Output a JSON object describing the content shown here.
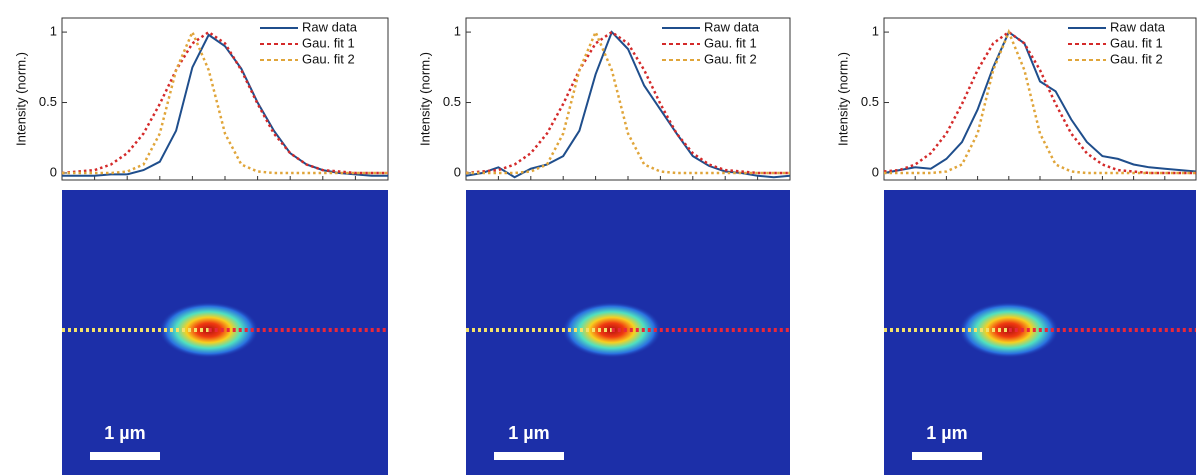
{
  "chart_data": [
    {
      "type": "line",
      "ylabel": "Intensity (norm.)",
      "x": [
        0,
        2,
        4,
        6,
        8,
        10,
        12,
        14,
        16,
        18,
        20,
        22,
        24,
        26,
        28,
        30,
        32,
        34,
        36,
        38,
        40
      ],
      "xlim": [
        0,
        40
      ],
      "ylim": [
        -0.05,
        1.1
      ],
      "yticks": [
        0,
        0.5,
        1
      ],
      "legend": "upper right",
      "scale_bar_label": "1 µm",
      "series": [
        {
          "name": "Raw data",
          "color": "#1f4e8c",
          "style": "solid",
          "values": [
            -0.02,
            -0.02,
            -0.02,
            -0.01,
            -0.01,
            0.02,
            0.08,
            0.3,
            0.75,
            0.98,
            0.9,
            0.74,
            0.5,
            0.3,
            0.14,
            0.06,
            0.02,
            0.0,
            -0.01,
            -0.02,
            -0.02
          ]
        },
        {
          "name": "Gau. fit 1",
          "color": "#d42a2a",
          "style": "dotted",
          "values": [
            0,
            0.01,
            0.02,
            0.06,
            0.14,
            0.28,
            0.49,
            0.73,
            0.92,
            1.0,
            0.92,
            0.73,
            0.49,
            0.28,
            0.14,
            0.06,
            0.02,
            0.01,
            0,
            0,
            0
          ]
        },
        {
          "name": "Gau. fit 2",
          "color": "#e0a53a",
          "style": "dotted",
          "values": [
            0,
            0,
            0,
            0,
            0.01,
            0.06,
            0.28,
            0.73,
            1.0,
            0.73,
            0.28,
            0.06,
            0.01,
            0,
            0,
            0,
            0,
            0,
            0,
            0,
            0
          ]
        }
      ]
    },
    {
      "type": "line",
      "ylabel": "Intensity (norm.)",
      "x": [
        0,
        2,
        4,
        6,
        8,
        10,
        12,
        14,
        16,
        18,
        20,
        22,
        24,
        26,
        28,
        30,
        32,
        34,
        36,
        38,
        40
      ],
      "xlim": [
        0,
        40
      ],
      "ylim": [
        -0.05,
        1.1
      ],
      "yticks": [
        0,
        0.5,
        1
      ],
      "legend": "upper right",
      "scale_bar_label": "1 µm",
      "series": [
        {
          "name": "Raw data",
          "color": "#1f4e8c",
          "style": "solid",
          "values": [
            -0.02,
            0.0,
            0.04,
            -0.03,
            0.03,
            0.06,
            0.12,
            0.3,
            0.7,
            1.0,
            0.88,
            0.62,
            0.45,
            0.28,
            0.12,
            0.05,
            0.01,
            0.0,
            -0.02,
            -0.03,
            -0.02
          ]
        },
        {
          "name": "Gau. fit 1",
          "color": "#d42a2a",
          "style": "dotted",
          "values": [
            0,
            0.01,
            0.02,
            0.06,
            0.14,
            0.28,
            0.49,
            0.73,
            0.92,
            1.0,
            0.92,
            0.73,
            0.49,
            0.28,
            0.14,
            0.06,
            0.02,
            0.01,
            0,
            0,
            0
          ]
        },
        {
          "name": "Gau. fit 2",
          "color": "#e0a53a",
          "style": "dotted",
          "values": [
            0,
            0,
            0,
            0,
            0.01,
            0.06,
            0.28,
            0.73,
            1.0,
            0.73,
            0.28,
            0.06,
            0.01,
            0,
            0,
            0,
            0,
            0,
            0,
            0,
            0
          ]
        }
      ]
    },
    {
      "type": "line",
      "ylabel": "Intensity (norm.)",
      "x": [
        0,
        2,
        4,
        6,
        8,
        10,
        12,
        14,
        16,
        18,
        20,
        22,
        24,
        26,
        28,
        30,
        32,
        34,
        36,
        38,
        40
      ],
      "xlim": [
        0,
        40
      ],
      "ylim": [
        -0.05,
        1.1
      ],
      "yticks": [
        0,
        0.5,
        1
      ],
      "legend": "upper right",
      "scale_bar_label": "1 µm",
      "series": [
        {
          "name": "Raw data",
          "color": "#1f4e8c",
          "style": "solid",
          "values": [
            0.0,
            0.02,
            0.04,
            0.03,
            0.1,
            0.22,
            0.45,
            0.75,
            1.0,
            0.92,
            0.65,
            0.58,
            0.38,
            0.22,
            0.12,
            0.1,
            0.06,
            0.04,
            0.03,
            0.02,
            0.01
          ]
        },
        {
          "name": "Gau. fit 1",
          "color": "#d42a2a",
          "style": "dotted",
          "values": [
            0.01,
            0.02,
            0.06,
            0.14,
            0.28,
            0.49,
            0.73,
            0.92,
            1.0,
            0.92,
            0.73,
            0.49,
            0.28,
            0.14,
            0.06,
            0.02,
            0.01,
            0,
            0,
            0,
            0
          ]
        },
        {
          "name": "Gau. fit 2",
          "color": "#e0a53a",
          "style": "dotted",
          "values": [
            0,
            0,
            0,
            0,
            0.01,
            0.06,
            0.28,
            0.73,
            1.0,
            0.73,
            0.28,
            0.06,
            0.01,
            0,
            0,
            0,
            0,
            0,
            0,
            0,
            0
          ]
        }
      ]
    }
  ]
}
